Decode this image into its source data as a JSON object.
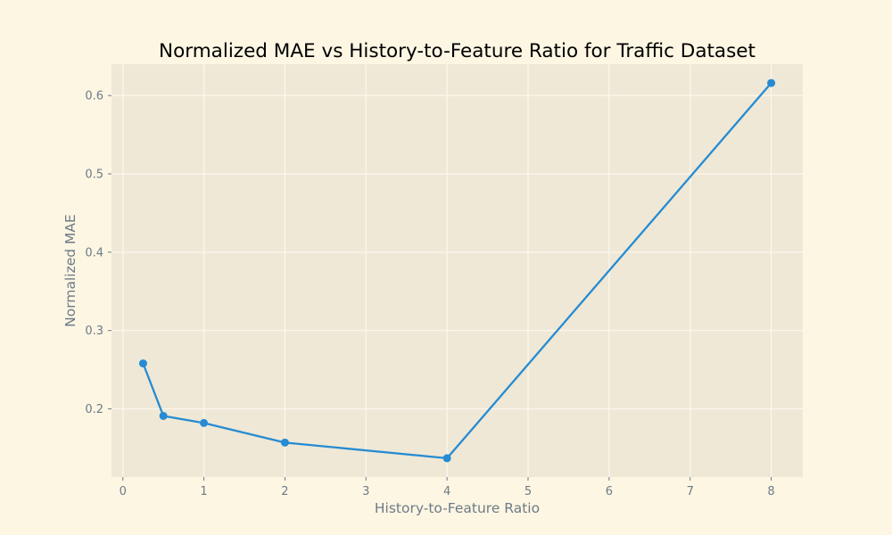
{
  "chart_data": {
    "type": "line",
    "title": "Normalized MAE vs History-to-Feature Ratio for Traffic Dataset",
    "xlabel": "History-to-Feature Ratio",
    "ylabel": "Normalized MAE",
    "x": [
      0.25,
      0.5,
      1,
      2,
      4,
      8
    ],
    "series": [
      {
        "values": [
          0.258,
          0.191,
          0.182,
          0.157,
          0.137,
          0.616
        ]
      }
    ],
    "xlim": [
      -0.14,
      8.39
    ],
    "ylim": [
      0.113,
      0.64
    ],
    "xticks": [
      0,
      1,
      2,
      3,
      4,
      5,
      6,
      7,
      8
    ],
    "xtick_labels": [
      "0",
      "1",
      "2",
      "3",
      "4",
      "5",
      "6",
      "7",
      "8"
    ],
    "yticks": [
      0.2,
      0.3,
      0.4,
      0.5,
      0.6
    ],
    "ytick_labels": [
      "0.2",
      "0.3",
      "0.4",
      "0.5",
      "0.6"
    ],
    "grid": true,
    "legend": false,
    "marker": "circle",
    "colors": {
      "figure_background": "#fdf6e3",
      "plot_background": "#efe8d6",
      "grid": "#fbf8ef",
      "line": "#268bd2",
      "axis_text": "#6d7b86",
      "title_text": "#000000"
    }
  }
}
